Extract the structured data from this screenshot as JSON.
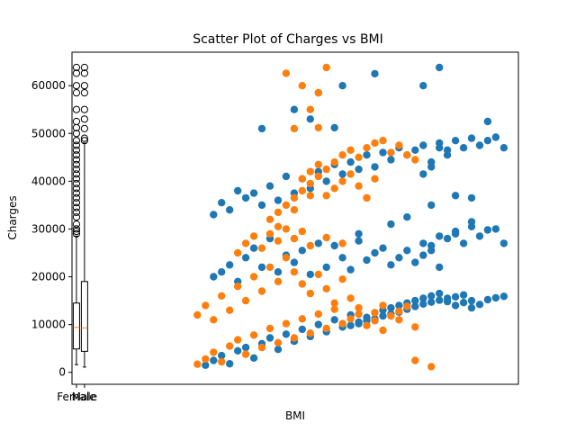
{
  "chart_data": {
    "type": "scatter",
    "title": "Scatter Plot of Charges vs BMI",
    "xlabel": "BMI",
    "ylabel": "Charges",
    "ylim": [
      -2500,
      67000
    ],
    "yticks": [
      0,
      10000,
      20000,
      30000,
      40000,
      50000,
      60000
    ],
    "ytick_labels": [
      "0",
      "10000",
      "20000",
      "30000",
      "40000",
      "50000",
      "60000"
    ],
    "xticks": [
      1,
      2
    ],
    "xtick_labels": [
      "Female",
      "Male"
    ],
    "grid": false,
    "colors": {
      "series_a": "#1f77b4",
      "series_b": "#ff7f0e",
      "box": "#000000"
    },
    "boxplots": [
      {
        "category": "female",
        "whisker_low": 1600,
        "q1": 4900,
        "median": 9400,
        "q3": 14500,
        "whisker_high": 28500,
        "outliers": [
          29000,
          29500,
          30000,
          31000,
          32500,
          33500,
          34500,
          35500,
          36500,
          37500,
          38500,
          39500,
          40500,
          41500,
          42500,
          43500,
          44500,
          45500,
          46500,
          47500,
          48500,
          50000,
          51200,
          52500,
          55000,
          58500,
          63800,
          60000,
          62600
        ]
      },
      {
        "category": "male",
        "whisker_low": 1100,
        "q1": 4400,
        "median": 9300,
        "q3": 19000,
        "whisker_high": 48000,
        "outliers": [
          48500,
          49000,
          51000,
          53000,
          55000,
          58500,
          60000,
          62600,
          63800
        ]
      }
    ],
    "series": [
      {
        "color_key": "series_a",
        "points": [
          [
            17,
            1500
          ],
          [
            18,
            2500
          ],
          [
            19,
            3500
          ],
          [
            20,
            1800
          ],
          [
            21,
            4500
          ],
          [
            22,
            5200
          ],
          [
            23,
            3000
          ],
          [
            24,
            6000
          ],
          [
            25,
            7200
          ],
          [
            26,
            4800
          ],
          [
            27,
            8000
          ],
          [
            28,
            6500
          ],
          [
            29,
            9000
          ],
          [
            30,
            7500
          ],
          [
            31,
            10000
          ],
          [
            32,
            8500
          ],
          [
            33,
            11000
          ],
          [
            34,
            9500
          ],
          [
            35,
            12000
          ],
          [
            36,
            10500
          ],
          [
            37,
            11500
          ],
          [
            38,
            12500
          ],
          [
            39,
            13000
          ],
          [
            40,
            13500
          ],
          [
            41,
            14000
          ],
          [
            42,
            14500
          ],
          [
            43,
            15000
          ],
          [
            44,
            15500
          ],
          [
            45,
            16000
          ],
          [
            46,
            16500
          ],
          [
            47,
            14800
          ],
          [
            48,
            15800
          ],
          [
            49,
            16200
          ],
          [
            50,
            13500
          ],
          [
            51,
            14200
          ],
          [
            52,
            15200
          ],
          [
            53,
            15600
          ],
          [
            54,
            15900
          ],
          [
            35,
            9800
          ],
          [
            36,
            10200
          ],
          [
            37,
            10800
          ],
          [
            38,
            11200
          ],
          [
            39,
            11800
          ],
          [
            40,
            12200
          ],
          [
            41,
            12600
          ],
          [
            42,
            13200
          ],
          [
            43,
            13800
          ],
          [
            44,
            14300
          ],
          [
            45,
            14700
          ],
          [
            46,
            15100
          ],
          [
            47,
            15500
          ],
          [
            48,
            14000
          ],
          [
            49,
            14600
          ],
          [
            50,
            15000
          ],
          [
            18,
            20000
          ],
          [
            19,
            21000
          ],
          [
            20,
            22500
          ],
          [
            21,
            19000
          ],
          [
            22,
            24000
          ],
          [
            23,
            26000
          ],
          [
            24,
            22000
          ],
          [
            25,
            28000
          ],
          [
            26,
            21000
          ],
          [
            27,
            24500
          ],
          [
            28,
            23000
          ],
          [
            29,
            25500
          ],
          [
            30,
            20500
          ],
          [
            31,
            27000
          ],
          [
            32,
            22000
          ],
          [
            33,
            26500
          ],
          [
            34,
            24000
          ],
          [
            35,
            21500
          ],
          [
            36,
            27500
          ],
          [
            37,
            23500
          ],
          [
            38,
            25000
          ],
          [
            39,
            26000
          ],
          [
            40,
            22500
          ],
          [
            41,
            24000
          ],
          [
            42,
            25500
          ],
          [
            43,
            23000
          ],
          [
            44,
            27000
          ],
          [
            45,
            26500
          ],
          [
            46,
            22000
          ],
          [
            47,
            28000
          ],
          [
            48,
            29500
          ],
          [
            49,
            27000
          ],
          [
            50,
            30500
          ],
          [
            51,
            28500
          ],
          [
            52,
            29800
          ],
          [
            53,
            30000
          ],
          [
            54,
            27000
          ],
          [
            44,
            24500
          ],
          [
            45,
            25500
          ],
          [
            46,
            28500
          ],
          [
            48,
            29000
          ],
          [
            50,
            31500
          ],
          [
            18,
            33000
          ],
          [
            19,
            35500
          ],
          [
            20,
            34000
          ],
          [
            21,
            38000
          ],
          [
            22,
            36500
          ],
          [
            23,
            37500
          ],
          [
            24,
            35000
          ],
          [
            25,
            39000
          ],
          [
            26,
            36000
          ],
          [
            27,
            41000
          ],
          [
            28,
            37500
          ],
          [
            29,
            40500
          ],
          [
            30,
            38500
          ],
          [
            31,
            42000
          ],
          [
            32,
            40000
          ],
          [
            33,
            43500
          ],
          [
            34,
            41500
          ],
          [
            35,
            44000
          ],
          [
            36,
            42500
          ],
          [
            37,
            45500
          ],
          [
            38,
            43000
          ],
          [
            39,
            46000
          ],
          [
            40,
            44500
          ],
          [
            41,
            47000
          ],
          [
            42,
            45500
          ],
          [
            43,
            46500
          ],
          [
            44,
            47500
          ],
          [
            45,
            44000
          ],
          [
            46,
            48000
          ],
          [
            47,
            46500
          ],
          [
            48,
            48500
          ],
          [
            49,
            47000
          ],
          [
            50,
            49000
          ],
          [
            51,
            47500
          ],
          [
            52,
            48500
          ],
          [
            53,
            49200
          ],
          [
            54,
            47000
          ],
          [
            44,
            41500
          ],
          [
            45,
            43000
          ],
          [
            46,
            47000
          ],
          [
            47,
            45500
          ],
          [
            24,
            51000
          ],
          [
            28,
            55000
          ],
          [
            30,
            53000
          ],
          [
            34,
            60000
          ],
          [
            38,
            62500
          ],
          [
            44,
            60000
          ],
          [
            46,
            63800
          ],
          [
            52,
            52500
          ],
          [
            48,
            37000
          ],
          [
            50,
            36500
          ],
          [
            42,
            32500
          ],
          [
            45,
            35000
          ],
          [
            40,
            31000
          ],
          [
            36,
            29000
          ],
          [
            33,
            51200
          ],
          [
            31,
            58500
          ]
        ]
      },
      {
        "color_key": "series_b",
        "points": [
          [
            16,
            1700
          ],
          [
            17,
            2800
          ],
          [
            18,
            4200
          ],
          [
            19,
            2200
          ],
          [
            20,
            5500
          ],
          [
            21,
            6800
          ],
          [
            22,
            3800
          ],
          [
            23,
            7800
          ],
          [
            24,
            5200
          ],
          [
            25,
            9200
          ],
          [
            26,
            6200
          ],
          [
            27,
            10200
          ],
          [
            28,
            7200
          ],
          [
            29,
            11200
          ],
          [
            30,
            8200
          ],
          [
            31,
            12200
          ],
          [
            32,
            9200
          ],
          [
            33,
            13200
          ],
          [
            34,
            10200
          ],
          [
            35,
            11200
          ],
          [
            36,
            12200
          ],
          [
            37,
            9800
          ],
          [
            38,
            10800
          ],
          [
            39,
            8800
          ],
          [
            40,
            11800
          ],
          [
            41,
            12800
          ],
          [
            42,
            13800
          ],
          [
            43,
            9500
          ],
          [
            16,
            12000
          ],
          [
            17,
            14000
          ],
          [
            18,
            11000
          ],
          [
            19,
            16000
          ],
          [
            20,
            13000
          ],
          [
            21,
            18000
          ],
          [
            22,
            15000
          ],
          [
            23,
            20000
          ],
          [
            24,
            17000
          ],
          [
            25,
            22000
          ],
          [
            26,
            19000
          ],
          [
            27,
            24000
          ],
          [
            28,
            21000
          ],
          [
            29,
            18500
          ],
          [
            30,
            16500
          ],
          [
            31,
            20500
          ],
          [
            32,
            17500
          ],
          [
            33,
            14500
          ],
          [
            34,
            19500
          ],
          [
            35,
            15500
          ],
          [
            36,
            13500
          ],
          [
            38,
            12500
          ],
          [
            39,
            14000
          ],
          [
            41,
            11000
          ],
          [
            21,
            25000
          ],
          [
            22,
            27000
          ],
          [
            23,
            28500
          ],
          [
            24,
            26000
          ],
          [
            25,
            29000
          ],
          [
            26,
            27500
          ],
          [
            27,
            30000
          ],
          [
            28,
            28000
          ],
          [
            29,
            29500
          ],
          [
            30,
            26500
          ],
          [
            32,
            28200
          ],
          [
            34,
            27000
          ],
          [
            25,
            32000
          ],
          [
            26,
            33500
          ],
          [
            27,
            35000
          ],
          [
            28,
            36500
          ],
          [
            29,
            38000
          ],
          [
            30,
            39500
          ],
          [
            31,
            41000
          ],
          [
            32,
            42500
          ],
          [
            33,
            44000
          ],
          [
            34,
            45500
          ],
          [
            35,
            46500
          ],
          [
            36,
            45000
          ],
          [
            37,
            47000
          ],
          [
            38,
            48000
          ],
          [
            39,
            48500
          ],
          [
            40,
            46000
          ],
          [
            41,
            47500
          ],
          [
            42,
            45500
          ],
          [
            43,
            44500
          ],
          [
            29,
            40500
          ],
          [
            30,
            42000
          ],
          [
            31,
            43500
          ],
          [
            32,
            37000
          ],
          [
            33,
            38500
          ],
          [
            34,
            40000
          ],
          [
            35,
            41500
          ],
          [
            36,
            39000
          ],
          [
            37,
            36500
          ],
          [
            38,
            40500
          ],
          [
            26,
            30500
          ],
          [
            28,
            34000
          ],
          [
            30,
            37000
          ],
          [
            27,
            62600
          ],
          [
            32,
            63800
          ],
          [
            29,
            60000
          ],
          [
            31,
            58500
          ],
          [
            30,
            55000
          ],
          [
            28,
            51000
          ],
          [
            31,
            51200
          ],
          [
            43,
            2500
          ],
          [
            45,
            1200
          ],
          [
            37,
            36500
          ]
        ]
      }
    ]
  }
}
